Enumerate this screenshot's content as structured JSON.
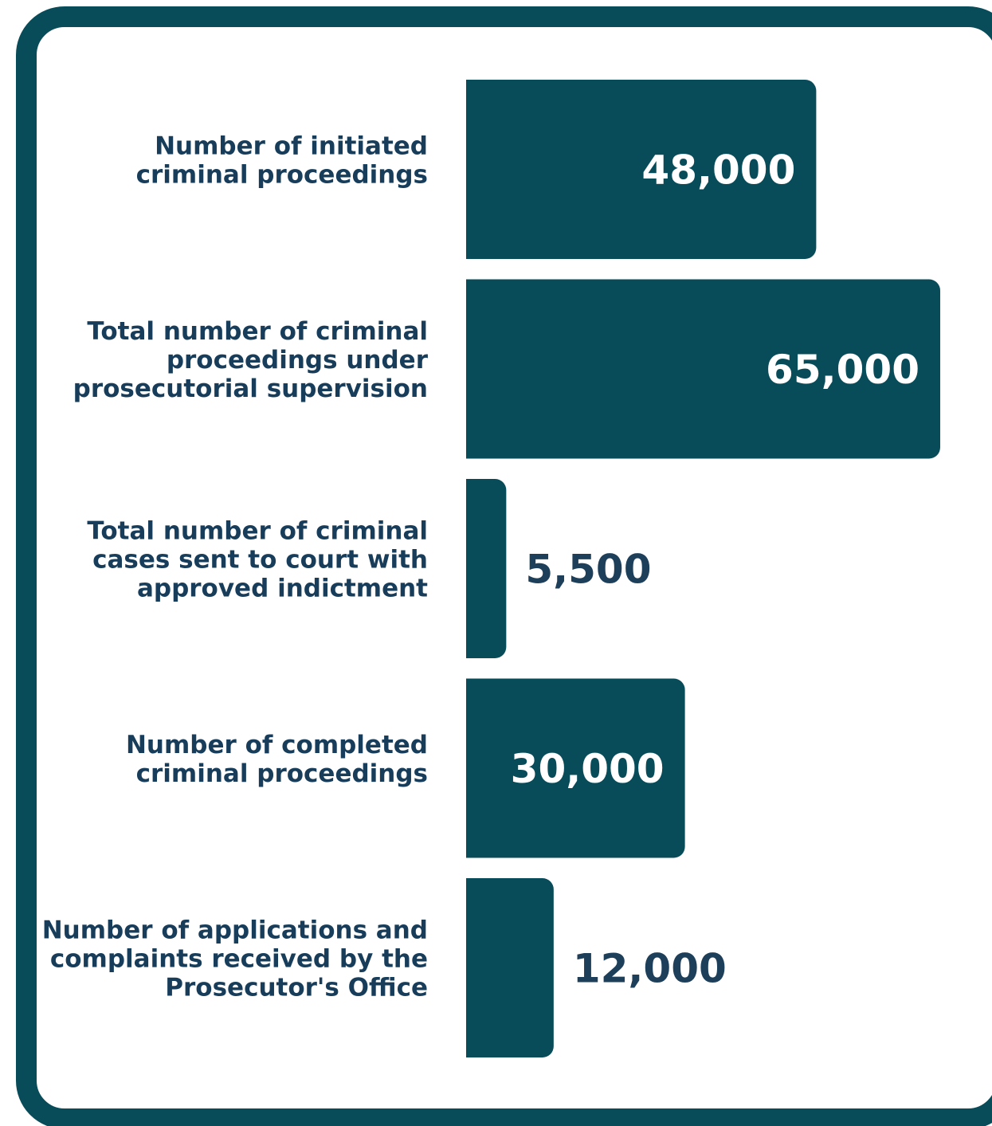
{
  "chart_data": {
    "type": "bar",
    "orientation": "horizontal",
    "categories": [
      "Number of initiated\ncriminal proceedings",
      "Total number of criminal\nproceedings under\nprosecutorial supervision",
      "Total number of criminal\ncases sent to court with\napproved indictment",
      "Number of completed\ncriminal proceedings",
      "Number of applications and\ncomplaints received by the\nProsecutor's Office"
    ],
    "values": [
      48000,
      65000,
      5500,
      30000,
      12000
    ],
    "value_labels": [
      "48,000",
      "65,000",
      "5,500",
      "30,000",
      "12,000"
    ],
    "color": "#094c59"
  }
}
